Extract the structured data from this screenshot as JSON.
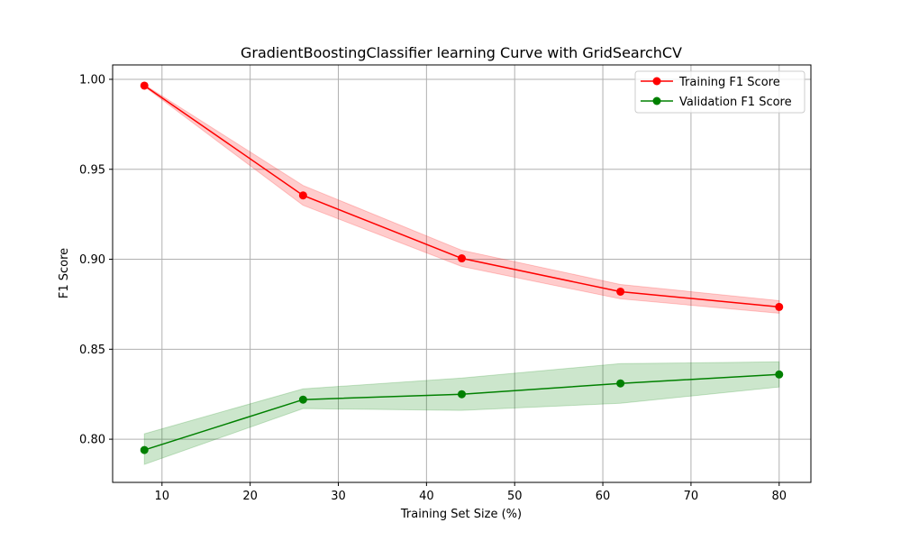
{
  "chart_data": {
    "type": "line",
    "title": "GradientBoostingClassifier learning Curve with GridSearchCV",
    "xlabel": "Training Set Size (%)",
    "ylabel": "F1 Score",
    "xlim": [
      4.4,
      83.6
    ],
    "ylim": [
      0.776,
      1.008
    ],
    "xticks": [
      10,
      20,
      30,
      40,
      50,
      60,
      70,
      80
    ],
    "yticks": [
      0.8,
      0.85,
      0.9,
      0.95,
      1.0
    ],
    "xtick_labels": [
      "10",
      "20",
      "30",
      "40",
      "50",
      "60",
      "70",
      "80"
    ],
    "ytick_labels": [
      "0.80",
      "0.85",
      "0.90",
      "0.95",
      "1.00"
    ],
    "grid": true,
    "legend_position": "top-right",
    "x": [
      8,
      26,
      44,
      62,
      80
    ],
    "series": [
      {
        "name": "Training F1 Score",
        "color": "#ff0000",
        "fill_color": "#ff0000",
        "values": [
          0.9965,
          0.9355,
          0.9005,
          0.882,
          0.8735
        ],
        "lower": [
          0.996,
          0.93,
          0.896,
          0.878,
          0.87
        ],
        "upper": [
          0.997,
          0.941,
          0.905,
          0.886,
          0.877
        ]
      },
      {
        "name": "Validation F1 Score",
        "color": "#008000",
        "fill_color": "#008000",
        "values": [
          0.794,
          0.822,
          0.825,
          0.831,
          0.836
        ],
        "lower": [
          0.786,
          0.817,
          0.816,
          0.82,
          0.829
        ],
        "upper": [
          0.803,
          0.828,
          0.834,
          0.842,
          0.843
        ]
      }
    ]
  }
}
